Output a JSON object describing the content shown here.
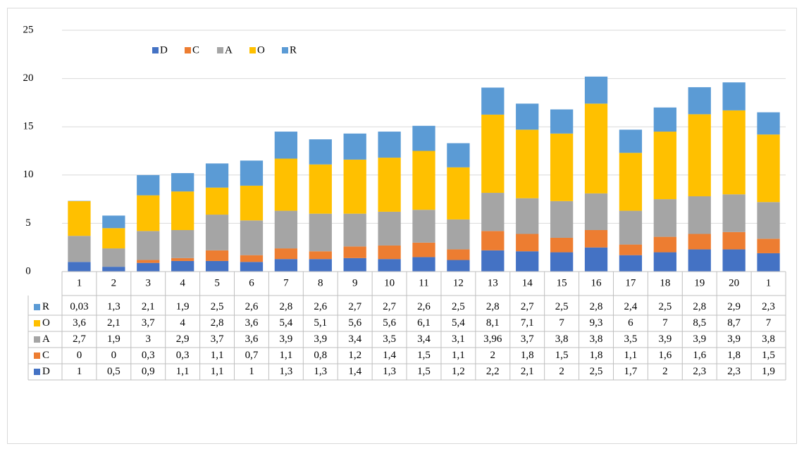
{
  "chart_data": {
    "type": "stacked_bar",
    "categories": [
      "1",
      "2",
      "3",
      "4",
      "5",
      "6",
      "7",
      "8",
      "9",
      "10",
      "11",
      "12",
      "13",
      "14",
      "15",
      "16",
      "17",
      "18",
      "19",
      "20",
      "1"
    ],
    "series": [
      {
        "name": "D",
        "color": "#4472c4",
        "values": [
          1,
          0.5,
          0.9,
          1.1,
          1.1,
          1,
          1.3,
          1.3,
          1.4,
          1.3,
          1.5,
          1.2,
          2.2,
          2.1,
          2,
          2.5,
          1.7,
          2,
          2.3,
          2.3,
          1.9
        ],
        "value_labels": [
          "1",
          "0,5",
          "0,9",
          "1,1",
          "1,1",
          "1",
          "1,3",
          "1,3",
          "1,4",
          "1,3",
          "1,5",
          "1,2",
          "2,2",
          "2,1",
          "2",
          "2,5",
          "1,7",
          "2",
          "2,3",
          "2,3",
          "1,9"
        ]
      },
      {
        "name": "C",
        "color": "#ed7d31",
        "values": [
          0,
          0,
          0.3,
          0.3,
          1.1,
          0.7,
          1.1,
          0.8,
          1.2,
          1.4,
          1.5,
          1.1,
          2,
          1.8,
          1.5,
          1.8,
          1.1,
          1.6,
          1.6,
          1.8,
          1.5
        ],
        "value_labels": [
          "0",
          "0",
          "0,3",
          "0,3",
          "1,1",
          "0,7",
          "1,1",
          "0,8",
          "1,2",
          "1,4",
          "1,5",
          "1,1",
          "2",
          "1,8",
          "1,5",
          "1,8",
          "1,1",
          "1,6",
          "1,6",
          "1,8",
          "1,5"
        ]
      },
      {
        "name": "A",
        "color": "#a5a5a5",
        "values": [
          2.7,
          1.9,
          3,
          2.9,
          3.7,
          3.6,
          3.9,
          3.9,
          3.4,
          3.5,
          3.4,
          3.1,
          3.96,
          3.7,
          3.8,
          3.8,
          3.5,
          3.9,
          3.9,
          3.9,
          3.8
        ],
        "value_labels": [
          "2,7",
          "1,9",
          "3",
          "2,9",
          "3,7",
          "3,6",
          "3,9",
          "3,9",
          "3,4",
          "3,5",
          "3,4",
          "3,1",
          "3,96",
          "3,7",
          "3,8",
          "3,8",
          "3,5",
          "3,9",
          "3,9",
          "3,9",
          "3,8"
        ]
      },
      {
        "name": "O",
        "color": "#ffc000",
        "values": [
          3.6,
          2.1,
          3.7,
          4,
          2.8,
          3.6,
          5.4,
          5.1,
          5.6,
          5.6,
          6.1,
          5.4,
          8.1,
          7.1,
          7,
          9.3,
          6,
          7,
          8.5,
          8.7,
          7
        ],
        "value_labels": [
          "3,6",
          "2,1",
          "3,7",
          "4",
          "2,8",
          "3,6",
          "5,4",
          "5,1",
          "5,6",
          "5,6",
          "6,1",
          "5,4",
          "8,1",
          "7,1",
          "7",
          "9,3",
          "6",
          "7",
          "8,5",
          "8,7",
          "7"
        ]
      },
      {
        "name": "R",
        "color": "#5b9bd5",
        "values": [
          0.03,
          1.3,
          2.1,
          1.9,
          2.5,
          2.6,
          2.8,
          2.6,
          2.7,
          2.7,
          2.6,
          2.5,
          2.8,
          2.7,
          2.5,
          2.8,
          2.4,
          2.5,
          2.8,
          2.9,
          2.3
        ],
        "value_labels": [
          "0,03",
          "1,3",
          "2,1",
          "1,9",
          "2,5",
          "2,6",
          "2,8",
          "2,6",
          "2,7",
          "2,7",
          "2,6",
          "2,5",
          "2,8",
          "2,7",
          "2,5",
          "2,8",
          "2,4",
          "2,5",
          "2,8",
          "2,9",
          "2,3"
        ]
      }
    ],
    "ylim": [
      0,
      25
    ],
    "yticks": [
      0,
      5,
      10,
      15,
      20,
      25
    ],
    "grid": true,
    "legend": "top-left",
    "data_table": true
  }
}
